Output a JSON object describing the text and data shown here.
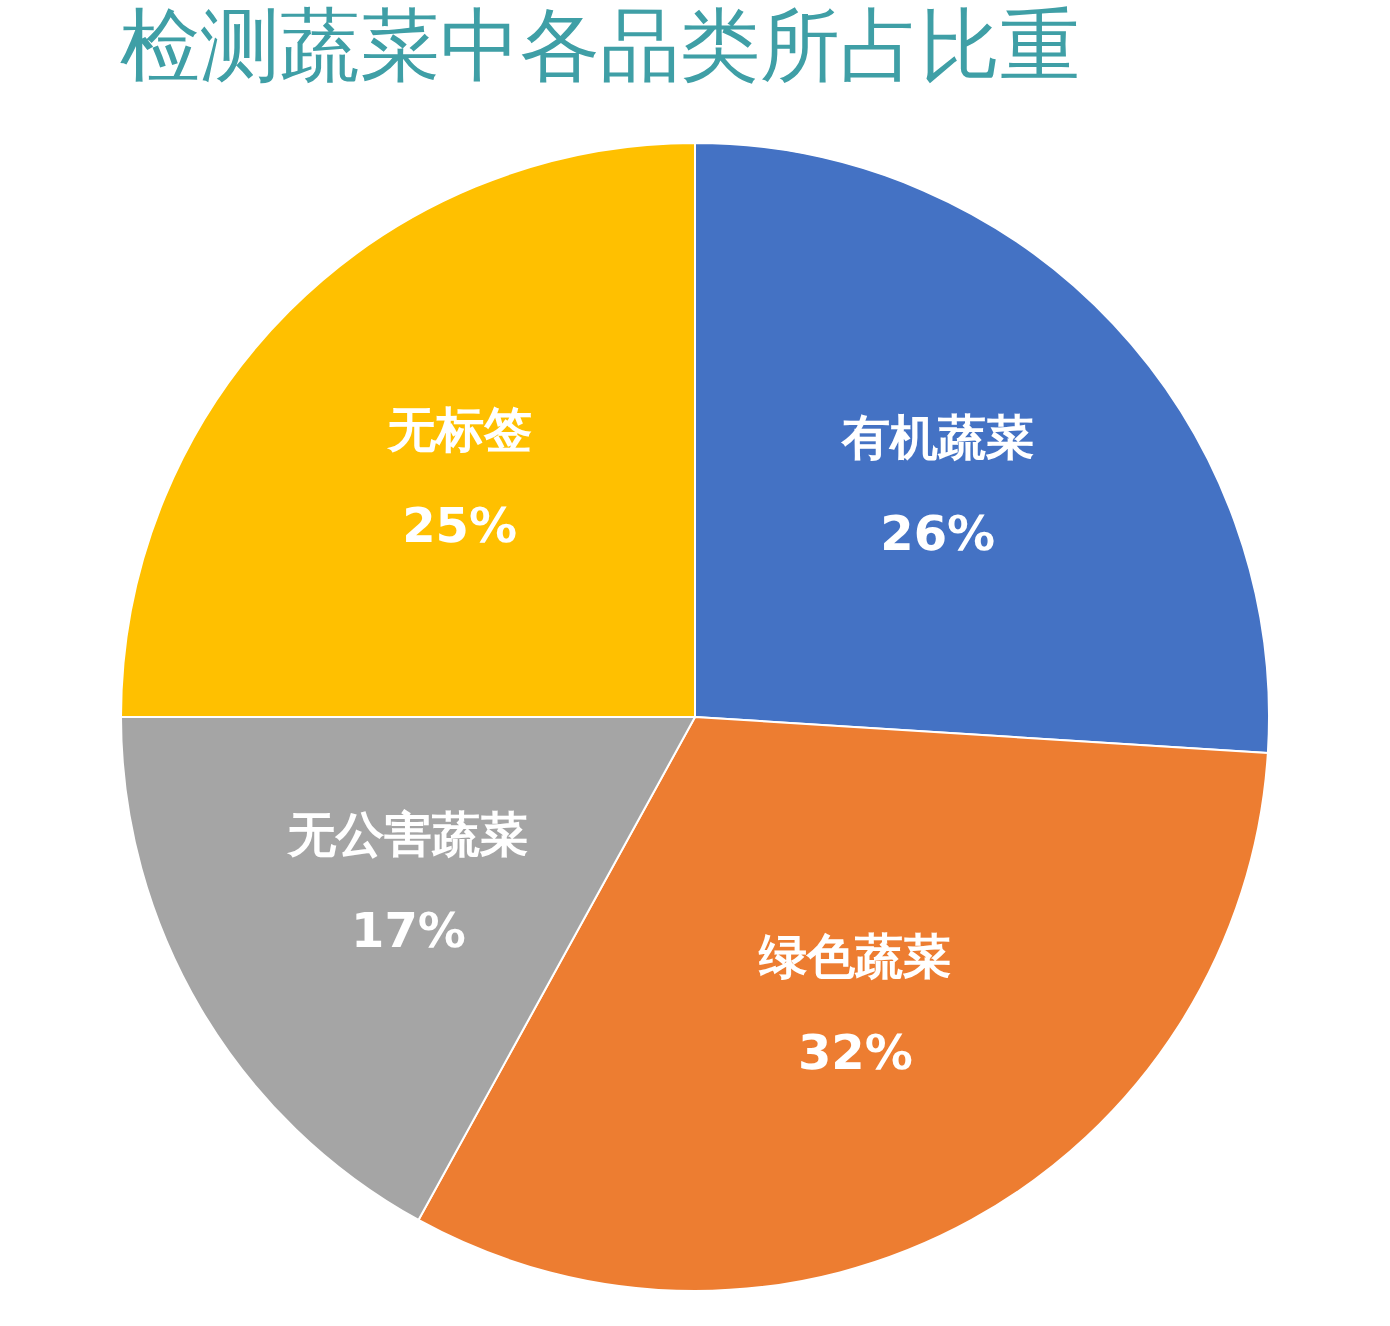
{
  "chart_data": {
    "type": "pie",
    "title": "检测蔬菜中各品类所占比重",
    "categories": [
      "有机蔬菜",
      "绿色蔬菜",
      "无公害蔬菜",
      "无标签"
    ],
    "values": [
      26,
      32,
      17,
      25
    ],
    "colors": [
      "#4472c4",
      "#ed7d31",
      "#a5a5a5",
      "#ffc000"
    ],
    "value_labels": [
      "26%",
      "32%",
      "17%",
      "25%"
    ],
    "legend": false
  }
}
